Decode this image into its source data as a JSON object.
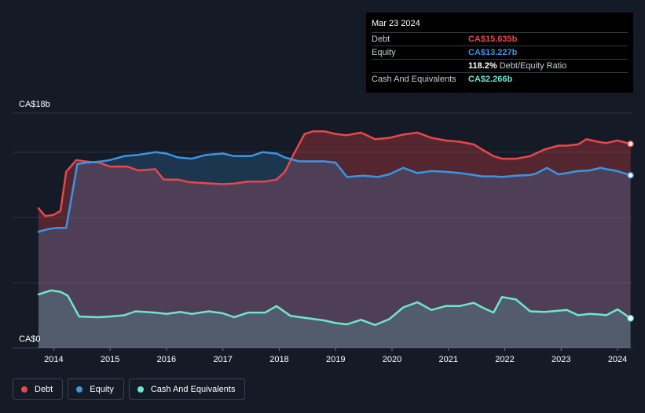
{
  "tooltip": {
    "date": "Mar 23 2024",
    "rows": [
      {
        "label": "Debt",
        "value": "CA$15.635b",
        "color": "#e8474a"
      },
      {
        "label": "Equity",
        "value": "CA$13.227b",
        "color": "#3a95e4"
      },
      {
        "label": "",
        "value": "118.2%",
        "extra": "Debt/Equity Ratio",
        "color": "#ffffff"
      },
      {
        "label": "Cash And Equivalents",
        "value": "CA$2.266b",
        "color": "#6ee6cf"
      }
    ]
  },
  "legend": [
    {
      "label": "Debt",
      "color": "#e8474a"
    },
    {
      "label": "Equity",
      "color": "#3a95e4"
    },
    {
      "label": "Cash And Equivalents",
      "color": "#6ee6cf"
    }
  ],
  "chart_data": {
    "type": "area",
    "y_unit": "CA$ billions",
    "ylim": [
      0,
      18
    ],
    "y_tick_labels": [
      "CA$18b",
      "CA$0"
    ],
    "x_tick_labels": [
      "2014",
      "2015",
      "2016",
      "2017",
      "2018",
      "2019",
      "2020",
      "2021",
      "2022",
      "2023",
      "2024"
    ],
    "xlim": [
      2013.73,
      2024.25
    ],
    "grid": true,
    "series": [
      {
        "name": "Debt",
        "color": "#e8474a",
        "x": [
          2013.73,
          2013.85,
          2014.0,
          2014.12,
          2014.22,
          2014.4,
          2014.55,
          2014.8,
          2015.0,
          2015.3,
          2015.5,
          2015.8,
          2015.95,
          2016.2,
          2016.4,
          2016.8,
          2017.0,
          2017.2,
          2017.45,
          2017.75,
          2017.95,
          2018.1,
          2018.25,
          2018.45,
          2018.6,
          2018.8,
          2019.0,
          2019.2,
          2019.45,
          2019.7,
          2019.95,
          2020.2,
          2020.45,
          2020.7,
          2020.95,
          2021.2,
          2021.45,
          2021.6,
          2021.8,
          2021.95,
          2022.2,
          2022.45,
          2022.7,
          2022.95,
          2023.1,
          2023.3,
          2023.45,
          2023.65,
          2023.8,
          2024.0,
          2024.23
        ],
        "y": [
          10.7,
          10.1,
          10.2,
          10.5,
          13.5,
          14.4,
          14.3,
          14.2,
          13.9,
          13.9,
          13.6,
          13.7,
          12.9,
          12.9,
          12.7,
          12.6,
          12.55,
          12.6,
          12.75,
          12.75,
          12.9,
          13.5,
          14.8,
          16.4,
          16.6,
          16.6,
          16.4,
          16.3,
          16.5,
          16.0,
          16.1,
          16.35,
          16.5,
          16.1,
          15.9,
          15.8,
          15.6,
          15.2,
          14.7,
          14.5,
          14.5,
          14.7,
          15.2,
          15.5,
          15.5,
          15.6,
          16.0,
          15.8,
          15.7,
          15.9,
          15.635
        ]
      },
      {
        "name": "Equity",
        "color": "#3a95e4",
        "x": [
          2013.73,
          2013.9,
          2014.05,
          2014.22,
          2014.42,
          2014.6,
          2014.85,
          2015.0,
          2015.25,
          2015.5,
          2015.8,
          2016.0,
          2016.2,
          2016.45,
          2016.7,
          2017.0,
          2017.2,
          2017.5,
          2017.7,
          2017.95,
          2018.1,
          2018.35,
          2018.6,
          2018.8,
          2019.0,
          2019.2,
          2019.5,
          2019.75,
          2019.95,
          2020.2,
          2020.45,
          2020.7,
          2020.95,
          2021.2,
          2021.45,
          2021.6,
          2021.8,
          2021.95,
          2022.2,
          2022.45,
          2022.55,
          2022.75,
          2022.95,
          2023.1,
          2023.3,
          2023.5,
          2023.7,
          2023.8,
          2024.0,
          2024.23
        ],
        "y": [
          8.9,
          9.1,
          9.2,
          9.2,
          14.1,
          14.2,
          14.3,
          14.4,
          14.7,
          14.8,
          15.0,
          14.9,
          14.6,
          14.5,
          14.8,
          14.9,
          14.7,
          14.7,
          15.0,
          14.9,
          14.6,
          14.3,
          14.3,
          14.3,
          14.2,
          13.1,
          13.2,
          13.1,
          13.3,
          13.8,
          13.4,
          13.55,
          13.5,
          13.4,
          13.25,
          13.15,
          13.15,
          13.1,
          13.2,
          13.25,
          13.35,
          13.8,
          13.3,
          13.4,
          13.55,
          13.6,
          13.8,
          13.7,
          13.55,
          13.227
        ]
      },
      {
        "name": "Cash And Equivalents",
        "color": "#6ee6cf",
        "x": [
          2013.73,
          2013.95,
          2014.12,
          2014.25,
          2014.45,
          2014.8,
          2015.0,
          2015.25,
          2015.45,
          2015.8,
          2016.0,
          2016.25,
          2016.45,
          2016.75,
          2017.0,
          2017.2,
          2017.45,
          2017.75,
          2017.95,
          2018.2,
          2018.45,
          2018.8,
          2019.0,
          2019.2,
          2019.45,
          2019.7,
          2019.95,
          2020.2,
          2020.45,
          2020.7,
          2020.95,
          2021.2,
          2021.45,
          2021.6,
          2021.8,
          2021.95,
          2022.2,
          2022.45,
          2022.7,
          2022.95,
          2023.1,
          2023.3,
          2023.5,
          2023.7,
          2023.8,
          2024.0,
          2024.23
        ],
        "y": [
          4.1,
          4.4,
          4.3,
          4.0,
          2.4,
          2.35,
          2.4,
          2.5,
          2.8,
          2.7,
          2.6,
          2.75,
          2.6,
          2.8,
          2.65,
          2.35,
          2.7,
          2.7,
          3.2,
          2.45,
          2.3,
          2.1,
          1.9,
          1.8,
          2.15,
          1.75,
          2.2,
          3.1,
          3.5,
          2.9,
          3.2,
          3.2,
          3.45,
          3.1,
          2.7,
          3.9,
          3.7,
          2.8,
          2.75,
          2.85,
          2.9,
          2.5,
          2.6,
          2.55,
          2.5,
          2.95,
          2.266
        ]
      }
    ]
  }
}
